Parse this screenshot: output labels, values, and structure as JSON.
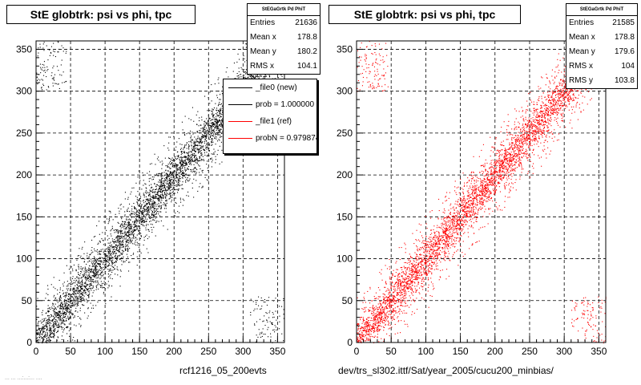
{
  "corner_note": "... ... ...:...:... ....",
  "chart_data": [
    {
      "type": "scatter",
      "title": "StE globtrk: psi vs phi, tpc",
      "color": "#000000",
      "xlim": [
        0,
        360
      ],
      "ylim": [
        0,
        360
      ],
      "xticks": [
        0,
        50,
        100,
        150,
        200,
        250,
        300,
        350
      ],
      "yticks": [
        0,
        50,
        100,
        150,
        200,
        250,
        300,
        350
      ],
      "grid": true,
      "stats": {
        "name": "StEGaGrtk Pd PhiT",
        "rows": [
          {
            "label": "Entries",
            "value": "21636"
          },
          {
            "label": "Mean x",
            "value": "178.8"
          },
          {
            "label": "Mean y",
            "value": "180.2"
          },
          {
            "label": "RMS x",
            "value": "104.1"
          }
        ]
      },
      "legend": [
        {
          "label": "_file0 (new)",
          "color": "#000000"
        },
        {
          "label": "prob = 1.000000",
          "color": "#000000"
        },
        {
          "label": "_file1 (ref)",
          "color": "#ff0000"
        },
        {
          "label": "probN = 0.979874",
          "color": "#ff0000"
        }
      ],
      "xnote": "rcf1216_05_200evts",
      "distribution": {
        "diagonal_slope": 1,
        "diagonal_spread": 18,
        "wrap_corners": true,
        "seed": 7
      }
    },
    {
      "type": "scatter",
      "title": "StE globtrk: psi vs phi, tpc",
      "color": "#ff0000",
      "xlim": [
        0,
        360
      ],
      "ylim": [
        0,
        360
      ],
      "xticks": [
        0,
        50,
        100,
        150,
        200,
        250,
        300,
        350
      ],
      "yticks": [
        0,
        50,
        100,
        150,
        200,
        250,
        300,
        350
      ],
      "grid": true,
      "stats": {
        "name": "StEGaGrtk Pd PhiT",
        "rows": [
          {
            "label": "Entries",
            "value": "21585"
          },
          {
            "label": "Mean x",
            "value": "178.8"
          },
          {
            "label": "Mean y",
            "value": "179.6"
          },
          {
            "label": "RMS x",
            "value": "104"
          },
          {
            "label": "RMS y",
            "value": "103.8"
          }
        ]
      },
      "xnote": "dev/trs_sl302.ittf/Sat/year_2005/cucu200_minbias/",
      "distribution": {
        "diagonal_slope": 1,
        "diagonal_spread": 18,
        "wrap_corners": true,
        "seed": 11
      }
    }
  ]
}
